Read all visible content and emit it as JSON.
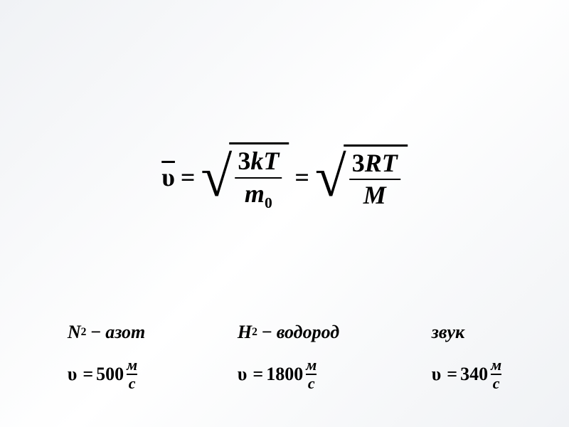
{
  "main_formula": {
    "lhs_symbol": "υ",
    "sqrt1_num_coef": "3",
    "sqrt1_num_var1": "k",
    "sqrt1_num_var2": "T",
    "sqrt1_den_var": "m",
    "sqrt1_den_sub": "0",
    "sqrt2_num_coef": "3",
    "sqrt2_num_var1": "R",
    "sqrt2_num_var2": "T",
    "sqrt2_den_var": "M",
    "equals": "="
  },
  "columns": [
    {
      "symbol": "N",
      "subscript": "2",
      "dash": "−",
      "name": "азот",
      "speed_sym": "υ",
      "eq": "=",
      "speed_val": "500",
      "unit_top": "м",
      "unit_bot": "с"
    },
    {
      "symbol": "H",
      "subscript": "2",
      "dash": "−",
      "name": "водород",
      "speed_sym": "υ",
      "eq": "=",
      "speed_val": "1800",
      "unit_top": "м",
      "unit_bot": "с"
    },
    {
      "name": "звук",
      "speed_sym": "υ",
      "eq": "=",
      "speed_val": "340",
      "unit_top": "м",
      "unit_bot": "с"
    }
  ],
  "style": {
    "bg_gradient_start": "#f0f2f5",
    "bg_gradient_end": "#ffffff",
    "text_color": "#000000",
    "main_fontsize": 36,
    "col_fontsize": 26,
    "font_family": "Times New Roman"
  }
}
